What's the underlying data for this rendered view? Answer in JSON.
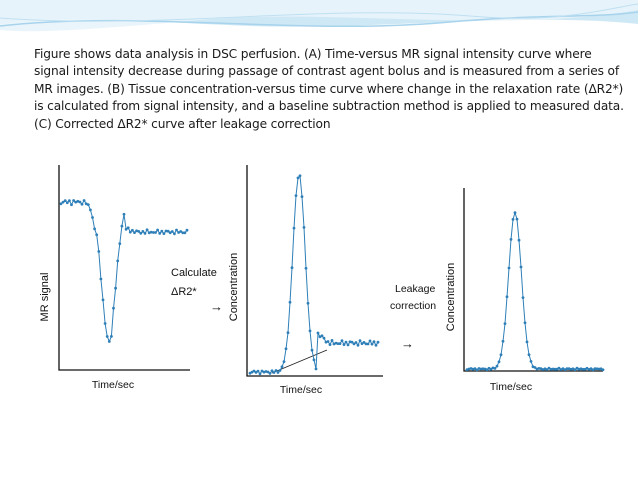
{
  "caption": "Figure shows data analysis in DSC perfusion. (A) Time-versus MR signal intensity curve where signal intensity decrease during passage of contrast agent bolus and is measured from a series of MR images. (B) Tissue concentration-versus time curve where change in the relaxation rate (ΔR2*) is calculated from signal intensity, and a baseline subtraction method is applied to measured data. (C) Corrected ΔR2* curve after leakage correction",
  "panels": {
    "a": {
      "ylabel": "MR signal",
      "xlabel": "Time/sec"
    },
    "b": {
      "ylabel": "Concentration",
      "xlabel": "Time/sec"
    },
    "c": {
      "ylabel": "Concentration",
      "xlabel": "Time/sec"
    }
  },
  "step1": {
    "line1": "Calculate",
    "line2": "ΔR2*",
    "arrow": "→"
  },
  "step2": {
    "line1": "Leakage",
    "line2": "correction",
    "arrow": "→"
  },
  "colors": {
    "curve": "#2e7fb8",
    "marker": "#2e7fb8",
    "axis": "#111111",
    "swoosh": "#7ec3e6"
  }
}
